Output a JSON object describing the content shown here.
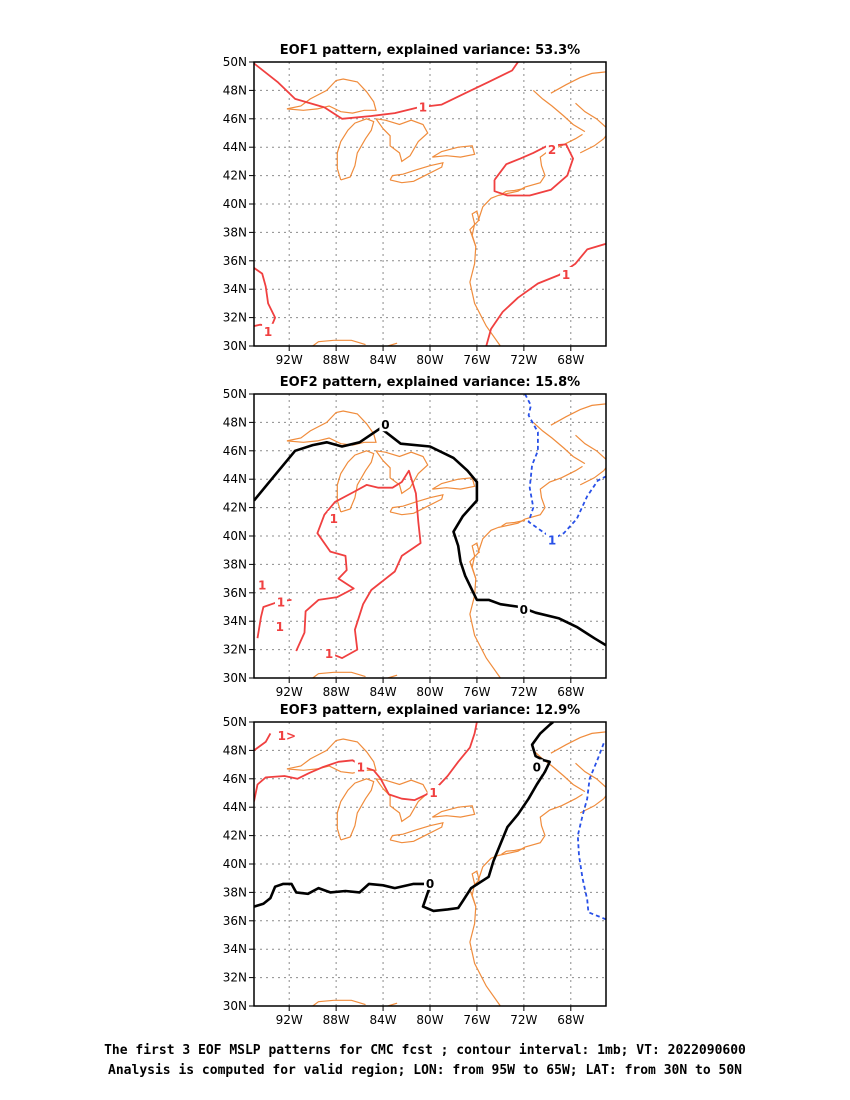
{
  "panels": [
    {
      "title": "EOF1 pattern, explained variance: 53.3%",
      "contours": [
        {
          "value": 1,
          "color": "#f04040",
          "dash": false,
          "points": [
            [
              -95,
              49.9
            ],
            [
              -93,
              48.6
            ],
            [
              -91.5,
              47.4
            ],
            [
              -89,
              46.8
            ],
            [
              -87.5,
              46.0
            ],
            [
              -85,
              46.2
            ],
            [
              -83,
              46.4
            ],
            [
              -81,
              46.8
            ],
            [
              -79,
              47.0
            ],
            [
              -77,
              47.8
            ],
            [
              -75,
              48.6
            ],
            [
              -73,
              49.4
            ],
            [
              -72.5,
              50
            ]
          ]
        },
        {
          "value": 2,
          "color": "#f04040",
          "dash": false,
          "points": [
            [
              -74.5,
              41.7
            ],
            [
              -73.5,
              42.8
            ],
            [
              -72.3,
              43.2
            ],
            [
              -71.2,
              43.6
            ],
            [
              -70,
              44.1
            ],
            [
              -68.4,
              44.2
            ],
            [
              -67.8,
              43.2
            ],
            [
              -68.3,
              42.0
            ],
            [
              -69.7,
              41.0
            ],
            [
              -71.5,
              40.6
            ],
            [
              -73.4,
              40.6
            ],
            [
              -74.5,
              40.9
            ],
            [
              -74.5,
              41.7
            ]
          ]
        },
        {
          "value": 1,
          "color": "#f04040",
          "dash": false,
          "points": [
            [
              -75.2,
              30.0
            ],
            [
              -74.8,
              31.2
            ],
            [
              -73.8,
              32.4
            ],
            [
              -72.5,
              33.4
            ],
            [
              -70.8,
              34.4
            ],
            [
              -69,
              35.0
            ],
            [
              -67.6,
              35.8
            ],
            [
              -66.6,
              36.8
            ],
            [
              -65,
              37.2
            ]
          ]
        },
        {
          "value": 1,
          "color": "#f04040",
          "dash": false,
          "points": [
            [
              -95,
              35.5
            ],
            [
              -94.3,
              35.1
            ],
            [
              -94.0,
              34.2
            ],
            [
              -93.8,
              33.0
            ],
            [
              -93.2,
              32.0
            ],
            [
              -93.5,
              31.4
            ],
            [
              -94.5,
              31.5
            ],
            [
              -95,
              31.4
            ]
          ]
        }
      ],
      "labels": [
        {
          "text": "1",
          "x": -80.6,
          "y": 46.8,
          "color": "#f04040"
        },
        {
          "text": "2",
          "x": -69.6,
          "y": 43.8,
          "color": "#f04040"
        },
        {
          "text": "1",
          "x": -68.4,
          "y": 35.0,
          "color": "#f04040"
        },
        {
          "text": "1",
          "x": -93.8,
          "y": 31.0,
          "color": "#f04040"
        }
      ]
    },
    {
      "title": "EOF2 pattern, explained variance: 15.8%",
      "contours": [
        {
          "value": 0,
          "color": "#000000",
          "dash": false,
          "bold": true,
          "points": [
            [
              -95,
              42.5
            ],
            [
              -93.2,
              44.3
            ],
            [
              -91.5,
              46.0
            ],
            [
              -90,
              46.4
            ],
            [
              -88.8,
              46.6
            ],
            [
              -87.5,
              46.3
            ],
            [
              -86,
              46.6
            ],
            [
              -84.2,
              47.6
            ],
            [
              -82.5,
              46.5
            ],
            [
              -80,
              46.3
            ],
            [
              -78,
              45.5
            ],
            [
              -76.8,
              44.6
            ],
            [
              -76,
              43.8
            ],
            [
              -76,
              42.5
            ],
            [
              -77.2,
              41.4
            ],
            [
              -78,
              40.3
            ],
            [
              -77.6,
              39.3
            ],
            [
              -77.4,
              38.2
            ],
            [
              -77,
              37.2
            ],
            [
              -76.3,
              36.0
            ],
            [
              -76,
              35.5
            ],
            [
              -75,
              35.5
            ],
            [
              -74,
              35.2
            ],
            [
              -72.3,
              35.0
            ],
            [
              -71,
              34.6
            ],
            [
              -69,
              34.2
            ],
            [
              -67.5,
              33.6
            ],
            [
              -66,
              32.8
            ],
            [
              -65,
              32.3
            ]
          ]
        },
        {
          "value": -1,
          "color": "#2850e8",
          "dash": true,
          "points": [
            [
              -71.9,
              50
            ],
            [
              -71.4,
              49.2
            ],
            [
              -71.6,
              48.5
            ],
            [
              -70.8,
              47.3
            ],
            [
              -70.8,
              46.0
            ],
            [
              -71.3,
              45.0
            ],
            [
              -71.5,
              43.4
            ],
            [
              -71.2,
              42.0
            ],
            [
              -71.6,
              41.0
            ],
            [
              -70.4,
              40.3
            ],
            [
              -69.5,
              39.8
            ],
            [
              -68.6,
              40.2
            ],
            [
              -67.5,
              41.2
            ],
            [
              -66.6,
              42.8
            ],
            [
              -65.7,
              43.9
            ],
            [
              -65,
              44.2
            ]
          ]
        },
        {
          "value": 1,
          "color": "#f04040",
          "dash": false,
          "points": [
            [
              -91.4,
              31.9
            ],
            [
              -90.7,
              33.2
            ],
            [
              -90.6,
              34.7
            ],
            [
              -89.5,
              35.5
            ],
            [
              -87.9,
              35.7
            ],
            [
              -86.5,
              36.3
            ],
            [
              -87.8,
              37.0
            ],
            [
              -87.1,
              37.6
            ],
            [
              -87.2,
              38.6
            ],
            [
              -88.5,
              38.9
            ],
            [
              -89.6,
              40.2
            ],
            [
              -89.0,
              41.5
            ],
            [
              -88.1,
              42.4
            ],
            [
              -86.5,
              43.1
            ],
            [
              -85.4,
              43.6
            ],
            [
              -84.4,
              43.4
            ],
            [
              -83.2,
              43.4
            ],
            [
              -82.4,
              43.8
            ],
            [
              -81.8,
              44.6
            ],
            [
              -81.2,
              43.0
            ],
            [
              -81.0,
              41.0
            ],
            [
              -80.8,
              39.5
            ],
            [
              -82.4,
              38.6
            ],
            [
              -83.0,
              37.5
            ],
            [
              -85.0,
              36.2
            ],
            [
              -85.7,
              35.2
            ],
            [
              -86.4,
              33.4
            ],
            [
              -86.2,
              32.0
            ],
            [
              -87.5,
              31.4
            ],
            [
              -89,
              31.9
            ]
          ]
        },
        {
          "value": 1,
          "color": "#f04040",
          "dash": false,
          "points": [
            [
              -94.7,
              32.8
            ],
            [
              -94.4,
              34.3
            ],
            [
              -94.2,
              35.0
            ],
            [
              -92.8,
              35.4
            ],
            [
              -91.8,
              35.5
            ]
          ]
        },
        {
          "value": 1,
          "color": "#f04040",
          "dash": false,
          "points": [
            [
              -94.4,
              36.9
            ],
            [
              -94.7,
              36.3
            ]
          ]
        }
      ],
      "labels": [
        {
          "text": "0",
          "x": -83.8,
          "y": 47.8,
          "color": "#000000"
        },
        {
          "text": "0",
          "x": -72.0,
          "y": 34.8,
          "color": "#000000"
        },
        {
          "text": "1",
          "x": -69.6,
          "y": 39.7,
          "color": "#2850e8"
        },
        {
          "text": "1",
          "x": -88.2,
          "y": 41.2,
          "color": "#f04040"
        },
        {
          "text": "1",
          "x": -94.3,
          "y": 36.5,
          "color": "#f04040"
        },
        {
          "text": "1",
          "x": -92.7,
          "y": 35.3,
          "color": "#f04040"
        },
        {
          "text": "1",
          "x": -92.8,
          "y": 33.6,
          "color": "#f04040"
        },
        {
          "text": "1",
          "x": -88.6,
          "y": 31.7,
          "color": "#f04040"
        }
      ]
    },
    {
      "title": "EOF3 pattern, explained variance: 12.9%",
      "contours": [
        {
          "value": 0,
          "color": "#000000",
          "dash": false,
          "bold": true,
          "points": [
            [
              -95,
              37.0
            ],
            [
              -94.2,
              37.2
            ],
            [
              -93.6,
              37.6
            ],
            [
              -93.2,
              38.4
            ],
            [
              -92.5,
              38.6
            ],
            [
              -91.8,
              38.6
            ],
            [
              -91.4,
              38.0
            ],
            [
              -90.4,
              37.9
            ],
            [
              -89.5,
              38.3
            ],
            [
              -88.5,
              38.0
            ],
            [
              -87.2,
              38.1
            ],
            [
              -86,
              38.0
            ],
            [
              -85.2,
              38.6
            ],
            [
              -84,
              38.5
            ],
            [
              -83,
              38.3
            ],
            [
              -81.4,
              38.6
            ],
            [
              -80.4,
              38.6
            ],
            [
              -80.1,
              38.2
            ],
            [
              -80.6,
              37.0
            ],
            [
              -79.7,
              36.7
            ],
            [
              -78.5,
              36.8
            ],
            [
              -77.6,
              36.9
            ],
            [
              -77.2,
              37.4
            ],
            [
              -76.5,
              38.3
            ],
            [
              -75,
              39.1
            ],
            [
              -74.6,
              40.2
            ],
            [
              -74,
              41.4
            ],
            [
              -73.4,
              42.6
            ],
            [
              -72.5,
              43.5
            ],
            [
              -71.6,
              44.6
            ],
            [
              -70.9,
              45.6
            ],
            [
              -70.2,
              46.5
            ],
            [
              -69.8,
              47.2
            ],
            [
              -70.3,
              47.3
            ],
            [
              -71.0,
              47.6
            ],
            [
              -71.3,
              48.4
            ],
            [
              -70.6,
              49.2
            ],
            [
              -69.8,
              49.8
            ],
            [
              -69.5,
              50
            ]
          ]
        },
        {
          "value": -1,
          "color": "#2850e8",
          "dash": true,
          "points": [
            [
              -65.2,
              48.5
            ],
            [
              -65.7,
              47.4
            ],
            [
              -66.4,
              46.0
            ],
            [
              -66.6,
              44.6
            ],
            [
              -67.0,
              43.4
            ],
            [
              -67.4,
              42.0
            ],
            [
              -67.3,
              40.6
            ],
            [
              -67.0,
              39.0
            ],
            [
              -66.6,
              37.5
            ],
            [
              -66.5,
              36.6
            ],
            [
              -65.6,
              36.3
            ],
            [
              -65,
              36.1
            ]
          ]
        },
        {
          "value": 1,
          "color": "#f04040",
          "dash": false,
          "points": [
            [
              -95,
              44.4
            ],
            [
              -94.7,
              45.6
            ],
            [
              -94.0,
              46.1
            ],
            [
              -92.4,
              46.2
            ],
            [
              -91.3,
              46.0
            ],
            [
              -90.3,
              46.4
            ],
            [
              -89.2,
              46.8
            ],
            [
              -87.8,
              47.2
            ],
            [
              -86.6,
              47.3
            ],
            [
              -85.6,
              46.8
            ],
            [
              -84.8,
              46.6
            ],
            [
              -84.2,
              46.0
            ],
            [
              -83.5,
              44.9
            ],
            [
              -82.4,
              44.6
            ],
            [
              -81.3,
              44.5
            ],
            [
              -80.3,
              44.9
            ],
            [
              -79.4,
              45.4
            ],
            [
              -78.5,
              46.2
            ],
            [
              -77.6,
              47.2
            ],
            [
              -76.6,
              48.2
            ],
            [
              -76.2,
              49.2
            ],
            [
              -76.0,
              50
            ]
          ]
        },
        {
          "value": 1,
          "color": "#f04040",
          "dash": false,
          "points": [
            [
              -95,
              48.0
            ],
            [
              -94.0,
              48.6
            ],
            [
              -93.6,
              49.2
            ]
          ]
        }
      ],
      "labels": [
        {
          "text": "0",
          "x": -80.0,
          "y": 38.6,
          "color": "#000000"
        },
        {
          "text": "0",
          "x": -70.9,
          "y": 46.8,
          "color": "#000000"
        },
        {
          "text": "1",
          "x": -85.9,
          "y": 46.8,
          "color": "#f04040"
        },
        {
          "text": "1",
          "x": -79.7,
          "y": 45.0,
          "color": "#f04040"
        },
        {
          "text": "1>",
          "x": -92.2,
          "y": 49.0,
          "color": "#f04040"
        }
      ]
    }
  ],
  "axes": {
    "x_ticks": [
      "92W",
      "88W",
      "84W",
      "80W",
      "76W",
      "72W",
      "68W"
    ],
    "x_values": [
      -92,
      -88,
      -84,
      -80,
      -76,
      -72,
      -68
    ],
    "y_ticks": [
      "30N",
      "32N",
      "34N",
      "36N",
      "38N",
      "40N",
      "42N",
      "44N",
      "46N",
      "48N",
      "50N"
    ],
    "y_values": [
      30,
      32,
      34,
      36,
      38,
      40,
      42,
      44,
      46,
      48,
      50
    ],
    "lon_range": [
      -95,
      -65
    ],
    "lat_range": [
      30,
      50
    ]
  },
  "colors": {
    "coastline": "#f08c3c",
    "grid": "#8c8c8c",
    "positive": "#f04040",
    "negative": "#2850e8",
    "zero": "#000000"
  },
  "caption": {
    "line1": "The first 3 EOF MSLP patterns for CMC fcst ; contour interval: 1mb; VT: 2022090600",
    "line2": "Analysis is computed for valid region; LON: from 95W to 65W; LAT: from 30N to 50N"
  }
}
